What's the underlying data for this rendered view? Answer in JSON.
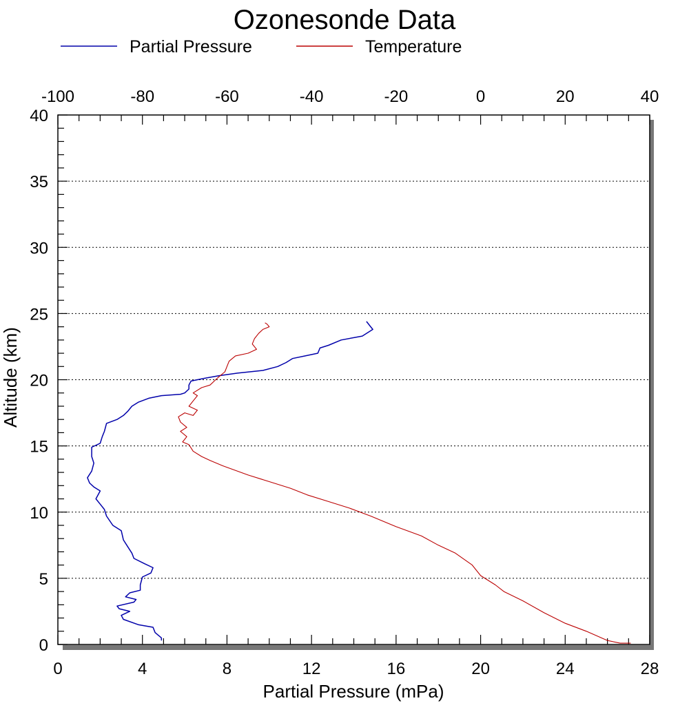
{
  "chart_data": {
    "type": "line",
    "title": "Ozonesonde Data",
    "xlabel": "Partial Pressure (mPa)",
    "ylabel": "Altitude (km)",
    "x_bottom": {
      "range": [
        0,
        28
      ],
      "ticks": [
        0,
        4,
        8,
        12,
        16,
        20,
        24,
        28
      ],
      "tick_labels": [
        "0",
        "4",
        "8",
        "12",
        "16",
        "20",
        "24",
        "28"
      ]
    },
    "x_top": {
      "range": [
        -100,
        40
      ],
      "ticks": [
        -100,
        -80,
        -60,
        -40,
        -20,
        0,
        20,
        40
      ],
      "tick_labels": [
        "-100",
        "-80",
        "-60",
        "-40",
        "-20",
        "0",
        "20",
        "40"
      ]
    },
    "y": {
      "range": [
        0,
        40
      ],
      "ticks": [
        0,
        5,
        10,
        15,
        20,
        25,
        30,
        35,
        40
      ],
      "tick_labels": [
        "0",
        "5",
        "10",
        "15",
        "20",
        "25",
        "30",
        "35",
        "40"
      ]
    },
    "grid": "horizontal-dotted",
    "legend_position": "top",
    "series": [
      {
        "name": "Partial Pressure",
        "axis": "bottom",
        "color": "#0000aa",
        "points": [
          [
            4.9,
            0.3
          ],
          [
            4.9,
            0.5
          ],
          [
            4.6,
            0.9
          ],
          [
            4.5,
            1.3
          ],
          [
            3.8,
            1.5
          ],
          [
            3.1,
            1.9
          ],
          [
            3.0,
            2.2
          ],
          [
            3.4,
            2.5
          ],
          [
            2.9,
            2.7
          ],
          [
            2.8,
            2.9
          ],
          [
            3.6,
            3.2
          ],
          [
            3.7,
            3.4
          ],
          [
            3.2,
            3.6
          ],
          [
            3.4,
            3.9
          ],
          [
            3.9,
            4.1
          ],
          [
            3.9,
            4.5
          ],
          [
            4.0,
            5.1
          ],
          [
            4.4,
            5.4
          ],
          [
            4.5,
            5.8
          ],
          [
            4.1,
            6.1
          ],
          [
            3.6,
            6.5
          ],
          [
            3.5,
            6.9
          ],
          [
            3.3,
            7.4
          ],
          [
            3.1,
            7.9
          ],
          [
            3.0,
            8.6
          ],
          [
            2.6,
            9.0
          ],
          [
            2.3,
            9.7
          ],
          [
            2.2,
            10.2
          ],
          [
            2.0,
            10.6
          ],
          [
            1.8,
            11.0
          ],
          [
            2.0,
            11.6
          ],
          [
            1.7,
            11.9
          ],
          [
            1.5,
            12.2
          ],
          [
            1.4,
            12.6
          ],
          [
            1.6,
            13.1
          ],
          [
            1.7,
            13.7
          ],
          [
            1.6,
            14.2
          ],
          [
            1.6,
            14.9
          ],
          [
            2.0,
            15.2
          ],
          [
            2.1,
            15.7
          ],
          [
            2.2,
            16.1
          ],
          [
            2.3,
            16.7
          ],
          [
            2.8,
            17.0
          ],
          [
            3.1,
            17.3
          ],
          [
            3.3,
            17.6
          ],
          [
            3.5,
            18.0
          ],
          [
            3.8,
            18.3
          ],
          [
            4.3,
            18.6
          ],
          [
            4.9,
            18.8
          ],
          [
            5.8,
            18.9
          ],
          [
            6.0,
            19.0
          ],
          [
            6.2,
            19.3
          ],
          [
            6.2,
            19.6
          ],
          [
            6.3,
            19.9
          ],
          [
            6.9,
            20.1
          ],
          [
            7.6,
            20.3
          ],
          [
            8.5,
            20.5
          ],
          [
            9.7,
            20.7
          ],
          [
            10.4,
            21.0
          ],
          [
            10.8,
            21.3
          ],
          [
            11.1,
            21.6
          ],
          [
            11.7,
            21.8
          ],
          [
            12.3,
            22.0
          ],
          [
            12.4,
            22.4
          ],
          [
            12.8,
            22.6
          ],
          [
            13.4,
            23.0
          ],
          [
            14.4,
            23.3
          ],
          [
            14.9,
            23.8
          ],
          [
            14.8,
            24.0
          ],
          [
            14.6,
            24.4
          ]
        ]
      },
      {
        "name": "Temperature",
        "axis": "top",
        "color": "#bb0000",
        "points": [
          [
            35.5,
            0.1
          ],
          [
            33.0,
            0.1
          ],
          [
            30.0,
            0.3
          ],
          [
            25.0,
            1.0
          ],
          [
            20.0,
            1.6
          ],
          [
            15.0,
            2.4
          ],
          [
            10.0,
            3.3
          ],
          [
            5.5,
            4.0
          ],
          [
            3.5,
            4.5
          ],
          [
            0.0,
            5.2
          ],
          [
            -2.0,
            6.0
          ],
          [
            -6.0,
            6.9
          ],
          [
            -10.0,
            7.5
          ],
          [
            -14.0,
            8.2
          ],
          [
            -20.0,
            8.9
          ],
          [
            -26.0,
            9.7
          ],
          [
            -31.0,
            10.3
          ],
          [
            -36.0,
            10.8
          ],
          [
            -41.0,
            11.3
          ],
          [
            -45.0,
            11.8
          ],
          [
            -50.0,
            12.3
          ],
          [
            -55.0,
            12.8
          ],
          [
            -61.0,
            13.5
          ],
          [
            -64.0,
            13.9
          ],
          [
            -66.0,
            14.2
          ],
          [
            -68.0,
            14.6
          ],
          [
            -69.0,
            15.1
          ],
          [
            -70.5,
            15.3
          ],
          [
            -69.5,
            15.7
          ],
          [
            -71.0,
            16.1
          ],
          [
            -69.5,
            16.4
          ],
          [
            -71.0,
            16.8
          ],
          [
            -71.5,
            17.2
          ],
          [
            -70.0,
            17.5
          ],
          [
            -68.0,
            17.3
          ],
          [
            -67.0,
            17.7
          ],
          [
            -69.0,
            18.0
          ],
          [
            -68.0,
            18.4
          ],
          [
            -67.0,
            18.8
          ],
          [
            -68.0,
            19.0
          ],
          [
            -66.0,
            19.4
          ],
          [
            -64.0,
            19.6
          ],
          [
            -63.0,
            19.9
          ],
          [
            -62.0,
            20.2
          ],
          [
            -60.5,
            20.6
          ],
          [
            -60.0,
            21.0
          ],
          [
            -59.5,
            21.4
          ],
          [
            -58.0,
            21.8
          ],
          [
            -55.0,
            22.0
          ],
          [
            -53.0,
            22.3
          ],
          [
            -54.0,
            22.7
          ],
          [
            -53.5,
            23.1
          ],
          [
            -52.5,
            23.5
          ],
          [
            -51.5,
            23.8
          ],
          [
            -50.0,
            24.0
          ],
          [
            -50.5,
            24.2
          ],
          [
            -51.0,
            24.3
          ]
        ]
      }
    ]
  }
}
